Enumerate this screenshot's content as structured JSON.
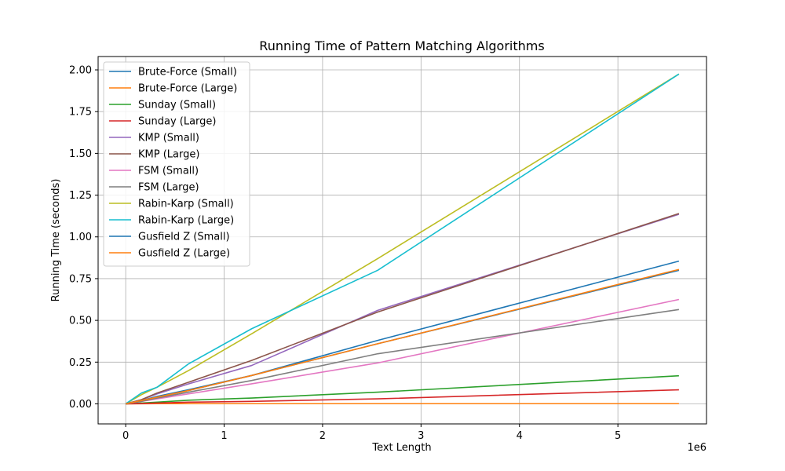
{
  "chart_data": {
    "type": "line",
    "title": "Running Time of Pattern Matching Algorithms",
    "xlabel": "Text Length",
    "ylabel": "Running Time (seconds)",
    "x_offset_label": "1e6",
    "xlim": [
      -0.28,
      5.9
    ],
    "ylim": [
      -0.12,
      2.08
    ],
    "x_ticks": [
      0,
      1,
      2,
      3,
      4,
      5
    ],
    "x_tick_labels": [
      "0",
      "1",
      "2",
      "3",
      "4",
      "5"
    ],
    "y_ticks": [
      0.0,
      0.25,
      0.5,
      0.75,
      1.0,
      1.25,
      1.5,
      1.75,
      2.0
    ],
    "y_tick_labels": [
      "0.00",
      "0.25",
      "0.50",
      "0.75",
      "1.00",
      "1.25",
      "1.50",
      "1.75",
      "2.00"
    ],
    "grid": true,
    "legend_position": "top-left",
    "x": [
      0.0,
      0.16,
      0.32,
      0.64,
      1.28,
      2.56,
      5.62
    ],
    "series": [
      {
        "name": "Brute-Force (Small)",
        "color": "#1f77b4",
        "values": [
          0.0,
          0.02,
          0.045,
          0.085,
          0.17,
          0.38,
          0.855
        ]
      },
      {
        "name": "Brute-Force (Large)",
        "color": "#ff7f0e",
        "values": [
          0.0,
          0.0005,
          0.001,
          0.001,
          0.001,
          0.001,
          0.001
        ]
      },
      {
        "name": "Sunday (Small)",
        "color": "#2ca02c",
        "values": [
          0.0,
          0.005,
          0.01,
          0.022,
          0.035,
          0.07,
          0.168
        ]
      },
      {
        "name": "Sunday (Large)",
        "color": "#d62728",
        "values": [
          0.0,
          0.002,
          0.005,
          0.01,
          0.015,
          0.03,
          0.084
        ]
      },
      {
        "name": "KMP (Small)",
        "color": "#9467bd",
        "values": [
          0.0,
          0.025,
          0.06,
          0.12,
          0.23,
          0.56,
          1.135
        ]
      },
      {
        "name": "KMP (Large)",
        "color": "#8c564b",
        "values": [
          0.0,
          0.025,
          0.065,
          0.13,
          0.26,
          0.55,
          1.14
        ]
      },
      {
        "name": "FSM (Small)",
        "color": "#e377c2",
        "values": [
          0.0,
          0.015,
          0.03,
          0.06,
          0.12,
          0.245,
          0.625
        ]
      },
      {
        "name": "FSM (Large)",
        "color": "#7f7f7f",
        "values": [
          0.0,
          0.015,
          0.035,
          0.07,
          0.14,
          0.3,
          0.565
        ]
      },
      {
        "name": "Rabin-Karp (Small)",
        "color": "#bcbd22",
        "values": [
          0.0,
          0.055,
          0.1,
          0.2,
          0.42,
          0.87,
          1.975
        ]
      },
      {
        "name": "Rabin-Karp (Large)",
        "color": "#17becf",
        "values": [
          0.0,
          0.065,
          0.1,
          0.24,
          0.45,
          0.8,
          1.975
        ]
      },
      {
        "name": "Gusfield Z (Small)",
        "color": "#1f77b4",
        "values": [
          0.0,
          0.02,
          0.04,
          0.08,
          0.17,
          0.36,
          0.8
        ]
      },
      {
        "name": "Gusfield Z (Large)",
        "color": "#ff7f0e",
        "values": [
          0.0,
          0.02,
          0.04,
          0.08,
          0.17,
          0.36,
          0.805
        ]
      }
    ]
  }
}
